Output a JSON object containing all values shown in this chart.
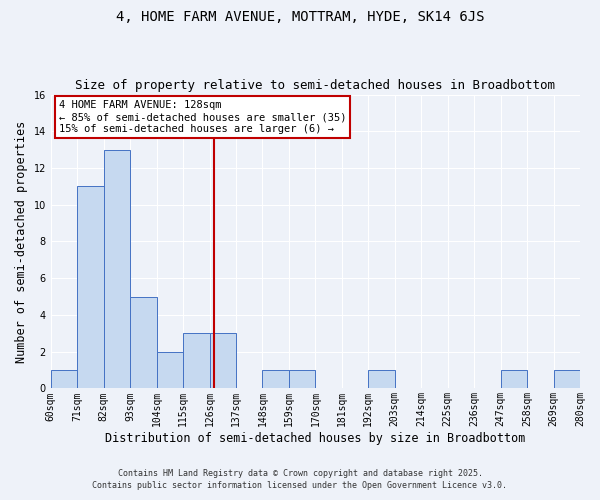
{
  "title": "4, HOME FARM AVENUE, MOTTRAM, HYDE, SK14 6JS",
  "subtitle": "Size of property relative to semi-detached houses in Broadbottom",
  "xlabel": "Distribution of semi-detached houses by size in Broadbottom",
  "ylabel": "Number of semi-detached properties",
  "bar_edges": [
    60,
    71,
    82,
    93,
    104,
    115,
    126,
    137,
    148,
    159,
    170,
    181,
    192,
    203,
    214,
    225,
    236,
    247,
    258,
    269,
    280
  ],
  "bar_labels": [
    "60sqm",
    "71sqm",
    "82sqm",
    "93sqm",
    "104sqm",
    "115sqm",
    "126sqm",
    "137sqm",
    "148sqm",
    "159sqm",
    "170sqm",
    "181sqm",
    "192sqm",
    "203sqm",
    "214sqm",
    "225sqm",
    "236sqm",
    "247sqm",
    "258sqm",
    "269sqm",
    "280sqm"
  ],
  "bar_values": [
    1,
    11,
    13,
    5,
    2,
    3,
    3,
    0,
    1,
    1,
    0,
    0,
    1,
    0,
    0,
    0,
    0,
    1,
    0,
    1
  ],
  "bar_color": "#c6d9f0",
  "bar_edge_color": "#4472c4",
  "property_size": 128,
  "property_line_color": "#c00000",
  "annotation_line1": "4 HOME FARM AVENUE: 128sqm",
  "annotation_line2": "← 85% of semi-detached houses are smaller (35)",
  "annotation_line3": "15% of semi-detached houses are larger (6) →",
  "annotation_box_color": "#ffffff",
  "annotation_box_edge": "#c00000",
  "ylim": [
    0,
    16
  ],
  "yticks": [
    0,
    2,
    4,
    6,
    8,
    10,
    12,
    14,
    16
  ],
  "footer1": "Contains HM Land Registry data © Crown copyright and database right 2025.",
  "footer2": "Contains public sector information licensed under the Open Government Licence v3.0.",
  "bg_color": "#eef2f9",
  "title_fontsize": 10,
  "subtitle_fontsize": 9,
  "axis_label_fontsize": 8.5,
  "tick_fontsize": 7,
  "footer_fontsize": 6,
  "annot_fontsize": 7.5
}
